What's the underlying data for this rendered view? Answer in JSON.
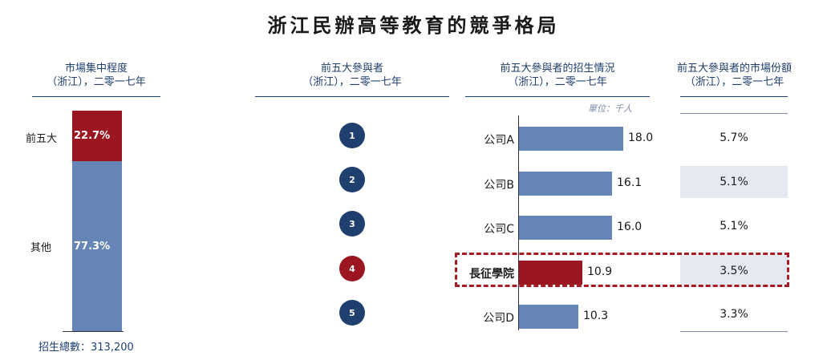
{
  "title": "浙江民辦高等教育的競爭格局",
  "headers": {
    "concentration": [
      "市場集中程度",
      "（浙江），二零一七年"
    ],
    "top5": [
      "前五大參與者",
      "（浙江），二零一七年"
    ],
    "enrollment": [
      "前五大參與者的招生情況",
      "（浙江），二零一七年"
    ],
    "share": [
      "前五大參與者的市場份額",
      "（浙江），二零一七年"
    ]
  },
  "unit_label": "單位：千人",
  "total_label": "招生總數：313,200",
  "colors": {
    "navy": "#1f3f6e",
    "blue": "#6585b6",
    "red": "#9b1620",
    "share_bg": "#e5eaf2"
  },
  "chart_data": [
    {
      "type": "bar",
      "stacked": true,
      "categories": [
        "前五大",
        "其他"
      ],
      "values": [
        22.7,
        77.3
      ],
      "value_labels": [
        "22.7%",
        "77.3%"
      ],
      "ylim": [
        0,
        100
      ]
    },
    {
      "type": "bar",
      "orientation": "horizontal",
      "categories": [
        "公司A",
        "公司B",
        "公司C",
        "長征學院",
        "公司D"
      ],
      "values": [
        18.0,
        16.1,
        16.0,
        10.9,
        10.3
      ],
      "value_labels": [
        "18.0",
        "16.1",
        "16.0",
        "10.9",
        "10.3"
      ],
      "highlight_index": 3,
      "ranks": [
        "1",
        "2",
        "3",
        "4",
        "5"
      ],
      "market_share": [
        "5.7%",
        "5.1%",
        "5.1%",
        "3.5%",
        "3.3%"
      ],
      "xlim": [
        0,
        18.0
      ]
    }
  ]
}
